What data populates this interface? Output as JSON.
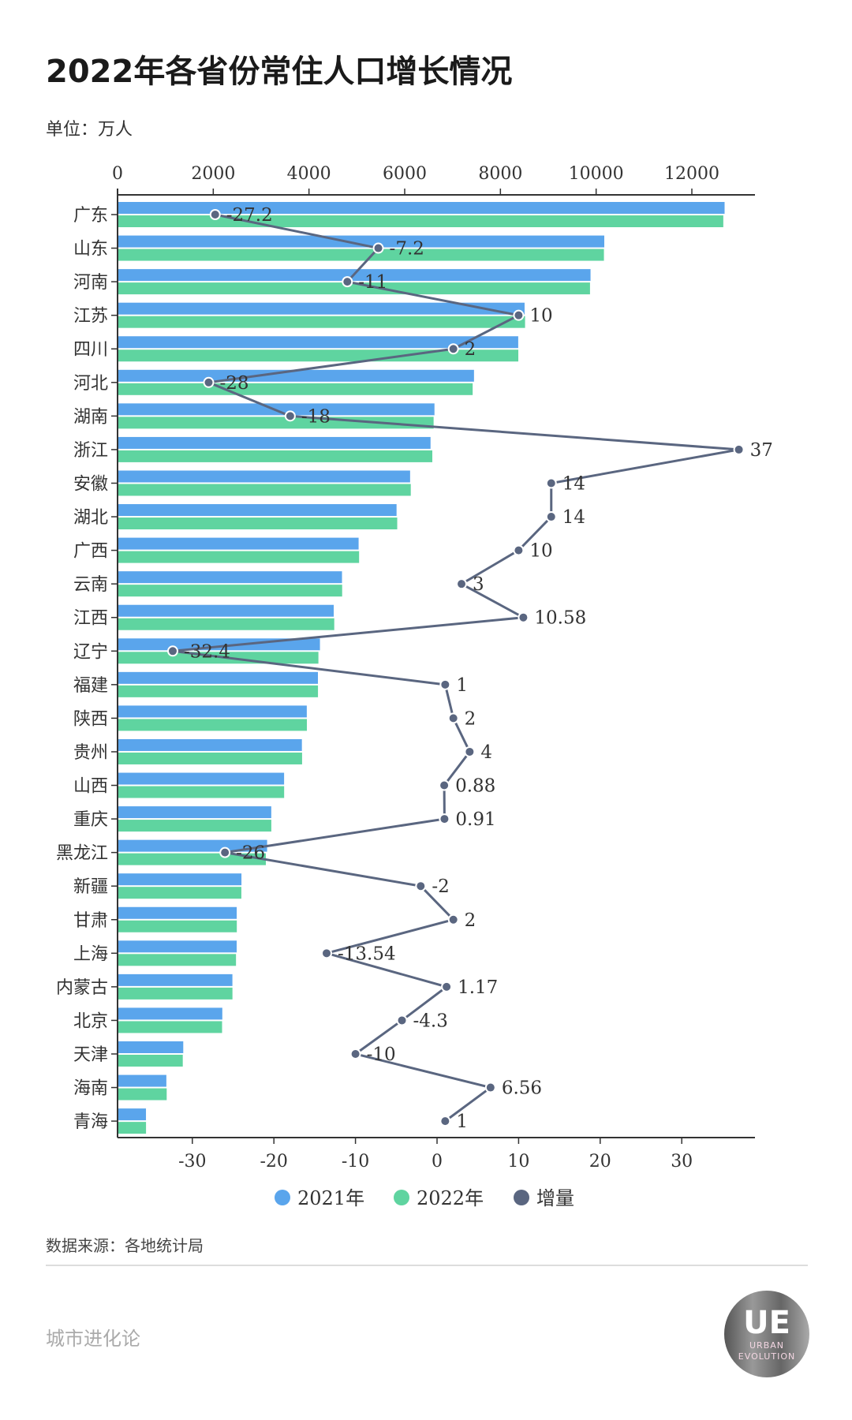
{
  "header": {
    "title": "2022年各省份常住人口增长情况",
    "unit": "单位：万人"
  },
  "footer": {
    "source": "数据来源：各地统计局",
    "brand": "城市进化论",
    "logo_text": "UE",
    "logo_sub1": "URBAN",
    "logo_sub2": "EVOLUTION"
  },
  "chart_data": {
    "type": "bar",
    "title": "2022年各省份常住人口增长情况",
    "unit": "万人",
    "categories": [
      "广东",
      "山东",
      "河南",
      "江苏",
      "四川",
      "河北",
      "湖南",
      "浙江",
      "安徽",
      "湖北",
      "广西",
      "云南",
      "江西",
      "辽宁",
      "福建",
      "陕西",
      "贵州",
      "山西",
      "重庆",
      "黑龙江",
      "新疆",
      "甘肃",
      "上海",
      "内蒙古",
      "北京",
      "天津",
      "海南",
      "青海"
    ],
    "series": [
      {
        "name": "2021年",
        "type": "bar",
        "axis": "top",
        "color": "#5aa5ec",
        "values": [
          12684,
          10170,
          9883,
          8505,
          8372,
          7448,
          6622,
          6540,
          6113,
          5830,
          5037,
          4690,
          4517,
          4229,
          4187,
          3954,
          3852,
          3480,
          3212,
          3125,
          2589,
          2490,
          2489,
          2400,
          2189,
          1373,
          1020,
          594
        ]
      },
      {
        "name": "2022年",
        "type": "bar",
        "axis": "top",
        "color": "#5fd4a0",
        "values": [
          12657,
          10163,
          9872,
          8515,
          8374,
          7420,
          6604,
          6577,
          6127,
          5844,
          5047,
          4693,
          4528,
          4197,
          4188,
          3956,
          3856,
          3481,
          3213,
          3099,
          2587,
          2492,
          2475,
          2401,
          2184,
          1363,
          1027,
          595
        ]
      },
      {
        "name": "增量",
        "type": "line",
        "axis": "bottom",
        "color": "#5a6680",
        "values": [
          -27.2,
          -7.2,
          -11,
          10,
          2,
          -28,
          -18,
          37,
          14,
          14,
          10,
          3,
          10.58,
          -32.4,
          1,
          2,
          4,
          0.88,
          0.91,
          -26,
          -2,
          2,
          -13.54,
          1.17,
          -4.3,
          -10,
          6.56,
          1
        ],
        "labels": [
          "-27.2",
          "-7.2",
          "-11",
          "10",
          "2",
          "-28",
          "-18",
          "37",
          "14",
          "14",
          "10",
          "3",
          "10.58",
          "-32.4",
          "1",
          "2",
          "4",
          "0.88",
          "0.91",
          "-26",
          "-2",
          "2",
          "-13.54",
          "1.17",
          "-4.3",
          "-10",
          "6.56",
          "1"
        ]
      }
    ],
    "top_axis": {
      "range": [
        0,
        13300
      ],
      "ticks": [
        0,
        2000,
        4000,
        6000,
        8000,
        10000,
        12000
      ],
      "tick_labels": [
        "0",
        "2000",
        "4000",
        "6000",
        "8000",
        "10000",
        "12000"
      ]
    },
    "bottom_axis": {
      "range": [
        -39,
        38
      ],
      "ticks": [
        -30,
        -20,
        -10,
        0,
        10,
        20,
        30
      ],
      "tick_labels": [
        "-30",
        "-20",
        "-10",
        "0",
        "10",
        "20",
        "30"
      ]
    },
    "legend": {
      "position": "bottom-center",
      "items": [
        "2021年",
        "2022年",
        "增量"
      ]
    },
    "grid": false
  }
}
